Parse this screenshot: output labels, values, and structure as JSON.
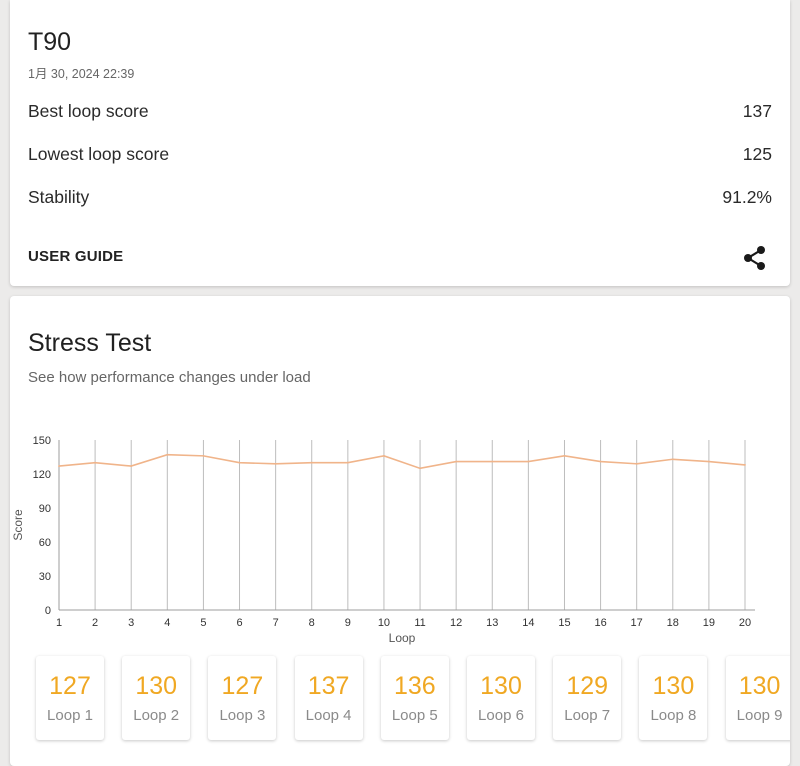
{
  "summary": {
    "device_name": "T90",
    "date": "1月 30, 2024 22:39",
    "rows": [
      {
        "label": "Best loop score",
        "value": "137"
      },
      {
        "label": "Lowest loop score",
        "value": "125"
      },
      {
        "label": "Stability",
        "value": "91.2%"
      }
    ],
    "user_guide_label": "USER GUIDE",
    "share_icon": "share-icon"
  },
  "stress_test": {
    "title": "Stress Test",
    "subtitle": "See how performance changes under load"
  },
  "chart_data": {
    "type": "line",
    "xlabel": "Loop",
    "ylabel": "Score",
    "x": [
      1,
      2,
      3,
      4,
      5,
      6,
      7,
      8,
      9,
      10,
      11,
      12,
      13,
      14,
      15,
      16,
      17,
      18,
      19,
      20
    ],
    "series": [
      {
        "values": [
          127,
          130,
          127,
          137,
          136,
          130,
          129,
          130,
          130,
          136,
          125,
          131,
          131,
          131,
          136,
          131,
          129,
          133,
          131,
          128
        ]
      }
    ],
    "ylim": [
      0,
      150
    ],
    "yticks": [
      0,
      30,
      60,
      90,
      120,
      150
    ],
    "grid": "vertical",
    "line_color": "#f0b48a"
  },
  "loops": [
    {
      "score": "127",
      "label": "Loop 1"
    },
    {
      "score": "130",
      "label": "Loop 2"
    },
    {
      "score": "127",
      "label": "Loop 3"
    },
    {
      "score": "137",
      "label": "Loop 4"
    },
    {
      "score": "136",
      "label": "Loop 5"
    },
    {
      "score": "130",
      "label": "Loop 6"
    },
    {
      "score": "129",
      "label": "Loop 7"
    },
    {
      "score": "130",
      "label": "Loop 8"
    },
    {
      "score": "130",
      "label": "Loop 9"
    }
  ],
  "colors": {
    "accent": "#f0a823",
    "line": "#f0b48a"
  }
}
